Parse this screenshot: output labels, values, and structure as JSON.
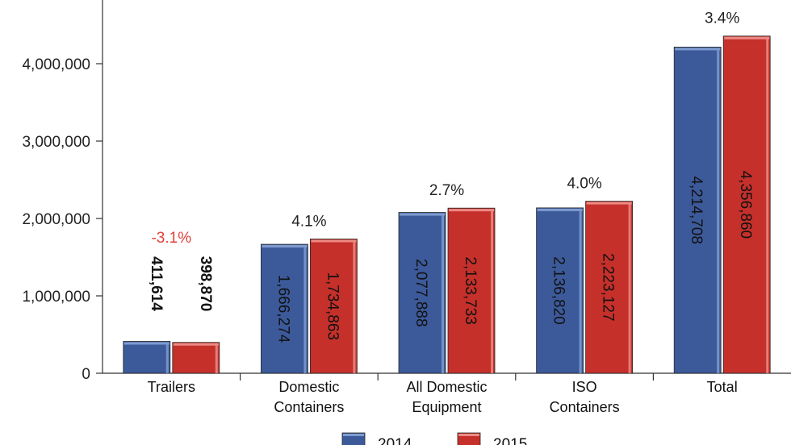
{
  "chart_data": {
    "type": "bar",
    "categories": [
      [
        "Trailers"
      ],
      [
        "Domestic",
        "Containers"
      ],
      [
        "All Domestic",
        "Equipment"
      ],
      [
        "ISO",
        "Containers"
      ],
      [
        "Total"
      ]
    ],
    "series": [
      {
        "name": "2014",
        "values": [
          411614,
          1666274,
          2077888,
          2136820,
          4214708
        ],
        "labels": [
          "411,614",
          "1,666,274",
          "2,077,888",
          "2,136,820",
          "4,214,708"
        ]
      },
      {
        "name": "2015",
        "values": [
          398870,
          1734863,
          2133733,
          2223127,
          4356860
        ],
        "labels": [
          "398,870",
          "1,734,863",
          "2,133,733",
          "2,223,127",
          "4,356,860"
        ]
      }
    ],
    "pct_changes": [
      "-3.1%",
      "4.1%",
      "2.7%",
      "4.0%",
      "3.4%"
    ],
    "y_ticks": [
      0,
      1000000,
      2000000,
      3000000,
      4000000
    ],
    "y_tick_labels": [
      "0",
      "1,000,000",
      "2,000,000",
      "3,000,000",
      "4,000,000"
    ],
    "ylim": [
      0,
      4800000
    ],
    "legend_position": "bottom-center"
  },
  "colors": {
    "series_2014": "#3c5a9a",
    "series_2014_light": "#7f9bd0",
    "series_2015": "#c5302b",
    "series_2015_light": "#ec8a84",
    "negative_change": "#e0423a",
    "axis": "#333333"
  }
}
